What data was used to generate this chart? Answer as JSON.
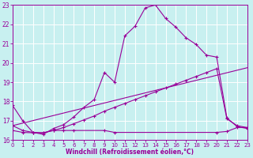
{
  "xlabel": "Windchill (Refroidissement éolien,°C)",
  "bg_color": "#c8f0f0",
  "grid_color": "#ffffff",
  "line_color": "#990099",
  "xmin": 0,
  "xmax": 23,
  "ymin": 16,
  "ymax": 23,
  "curve1_x": [
    0,
    1,
    2,
    3,
    4,
    5,
    6,
    7,
    8,
    9,
    10,
    11,
    12,
    13,
    14,
    15,
    16,
    17,
    18,
    19,
    20,
    21,
    22,
    23
  ],
  "curve1_y": [
    17.8,
    17.0,
    16.4,
    16.3,
    16.6,
    16.8,
    17.2,
    17.7,
    18.1,
    19.5,
    19.0,
    21.4,
    21.9,
    22.85,
    23.0,
    22.3,
    21.85,
    21.3,
    20.95,
    20.4,
    20.3,
    17.15,
    16.7,
    16.6
  ],
  "curve2_x": [
    0,
    1,
    2,
    3,
    4,
    5,
    6,
    7,
    8,
    9,
    10,
    11,
    12,
    13,
    14,
    15,
    16,
    17,
    18,
    19,
    20,
    21,
    22,
    23
  ],
  "curve2_y": [
    16.75,
    16.5,
    16.4,
    16.38,
    16.5,
    16.65,
    16.85,
    17.05,
    17.25,
    17.5,
    17.7,
    17.9,
    18.1,
    18.3,
    18.5,
    18.7,
    18.9,
    19.1,
    19.3,
    19.5,
    19.7,
    17.1,
    16.75,
    16.65
  ],
  "line3_x": [
    0,
    23
  ],
  "line3_y": [
    16.75,
    19.75
  ],
  "curve4_x": [
    0,
    1,
    2,
    3,
    4,
    5,
    6,
    9,
    10,
    20,
    21,
    22,
    23
  ],
  "curve4_y": [
    16.5,
    16.4,
    16.38,
    16.38,
    16.5,
    16.5,
    16.5,
    16.5,
    16.4,
    16.4,
    16.45,
    16.65,
    16.65
  ]
}
